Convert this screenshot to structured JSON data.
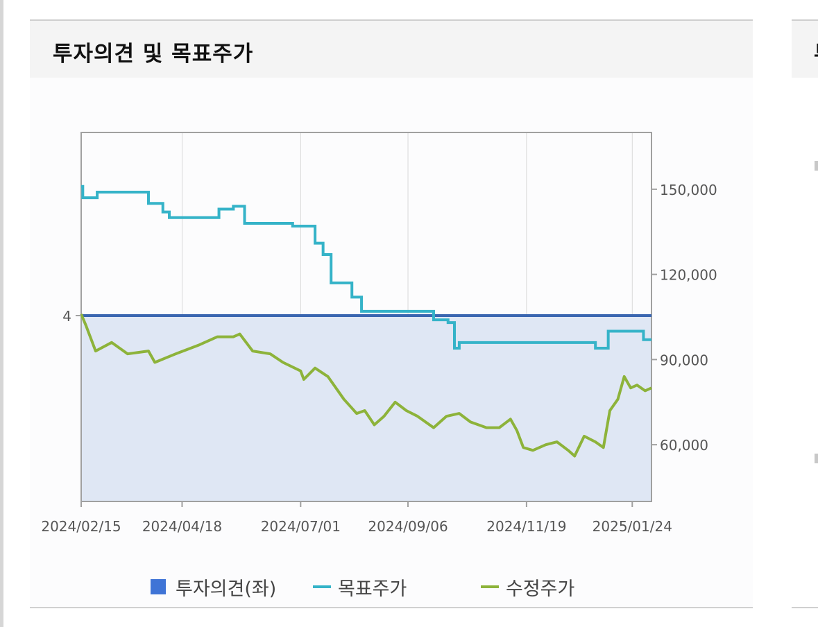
{
  "panel": {
    "title": "투자의견 및 목표주가"
  },
  "panel2": {
    "title_fragment": "투"
  },
  "chart_data": {
    "type": "line",
    "x_tick_labels": [
      "2024/02/15",
      "2024/04/18",
      "2024/07/01",
      "2024/09/06",
      "2024/11/19",
      "2025/01/24"
    ],
    "y_left_ticks": [
      "4"
    ],
    "y_right_ticks": [
      "150,000",
      "120,000",
      "90,000",
      "60,000"
    ],
    "y_right_range": [
      40000,
      170000
    ],
    "y_left_opinion_value": 4,
    "grid": true,
    "legend_position": "bottom",
    "series": [
      {
        "name": "투자의견(좌)",
        "axis": "left",
        "kind": "area",
        "color": "#3a66b0",
        "fill": "#dfe7f4",
        "legend_color": "#3f74d6",
        "value": 4
      },
      {
        "name": "목표주가",
        "axis": "right",
        "kind": "step",
        "color": "#35b3c8",
        "points": [
          [
            "2024/02/15",
            151000
          ],
          [
            "2024/02/16",
            147000
          ],
          [
            "2024/02/24",
            147000
          ],
          [
            "2024/02/25",
            149000
          ],
          [
            "2024/03/27",
            149000
          ],
          [
            "2024/03/28",
            145000
          ],
          [
            "2024/04/05",
            145000
          ],
          [
            "2024/04/06",
            142000
          ],
          [
            "2024/04/10",
            140000
          ],
          [
            "2024/05/10",
            140000
          ],
          [
            "2024/05/11",
            143000
          ],
          [
            "2024/05/20",
            144000
          ],
          [
            "2024/05/26",
            144000
          ],
          [
            "2024/05/27",
            138000
          ],
          [
            "2024/06/25",
            138000
          ],
          [
            "2024/06/26",
            137000
          ],
          [
            "2024/07/08",
            137000
          ],
          [
            "2024/07/10",
            131000
          ],
          [
            "2024/07/15",
            127000
          ],
          [
            "2024/07/20",
            117000
          ],
          [
            "2024/07/30",
            117000
          ],
          [
            "2024/08/02",
            112000
          ],
          [
            "2024/08/08",
            107000
          ],
          [
            "2024/09/17",
            107000
          ],
          [
            "2024/09/22",
            104000
          ],
          [
            "2024/10/01",
            103000
          ],
          [
            "2024/10/05",
            94000
          ],
          [
            "2024/10/08",
            96000
          ],
          [
            "2024/12/31",
            96000
          ],
          [
            "2025/01/01",
            94000
          ],
          [
            "2025/01/08",
            94000
          ],
          [
            "2025/01/09",
            100000
          ],
          [
            "2025/01/24",
            100000
          ],
          [
            "2025/01/31",
            97000
          ],
          [
            "2025/02/05",
            97000
          ]
        ]
      },
      {
        "name": "수정주가",
        "axis": "right",
        "kind": "line",
        "color": "#8db33a",
        "points": [
          [
            "2024/02/15",
            106000
          ],
          [
            "2024/02/18",
            102000
          ],
          [
            "2024/02/24",
            93000
          ],
          [
            "2024/03/05",
            96000
          ],
          [
            "2024/03/15",
            92000
          ],
          [
            "2024/03/28",
            93000
          ],
          [
            "2024/04/01",
            89000
          ],
          [
            "2024/04/14",
            92000
          ],
          [
            "2024/04/28",
            95000
          ],
          [
            "2024/05/10",
            98000
          ],
          [
            "2024/05/20",
            98000
          ],
          [
            "2024/05/24",
            99000
          ],
          [
            "2024/06/01",
            93000
          ],
          [
            "2024/06/12",
            92000
          ],
          [
            "2024/06/20",
            89000
          ],
          [
            "2024/07/01",
            86000
          ],
          [
            "2024/07/03",
            83000
          ],
          [
            "2024/07/10",
            87000
          ],
          [
            "2024/07/18",
            84000
          ],
          [
            "2024/07/28",
            76000
          ],
          [
            "2024/08/05",
            71000
          ],
          [
            "2024/08/10",
            72000
          ],
          [
            "2024/08/16",
            67000
          ],
          [
            "2024/08/22",
            70000
          ],
          [
            "2024/08/29",
            75000
          ],
          [
            "2024/09/05",
            72000
          ],
          [
            "2024/09/12",
            70000
          ],
          [
            "2024/09/22",
            66000
          ],
          [
            "2024/09/30",
            70000
          ],
          [
            "2024/10/08",
            71000
          ],
          [
            "2024/10/15",
            68000
          ],
          [
            "2024/10/25",
            66000
          ],
          [
            "2024/11/02",
            66000
          ],
          [
            "2024/11/09",
            69000
          ],
          [
            "2024/11/13",
            65000
          ],
          [
            "2024/11/17",
            59000
          ],
          [
            "2024/11/23",
            58000
          ],
          [
            "2024/12/01",
            60000
          ],
          [
            "2024/12/08",
            61000
          ],
          [
            "2024/12/15",
            58000
          ],
          [
            "2024/12/19",
            56000
          ],
          [
            "2024/12/25",
            63000
          ],
          [
            "2025/01/01",
            61000
          ],
          [
            "2025/01/06",
            59000
          ],
          [
            "2025/01/10",
            72000
          ],
          [
            "2025/01/15",
            76000
          ],
          [
            "2025/01/19",
            84000
          ],
          [
            "2025/01/23",
            80000
          ],
          [
            "2025/01/27",
            81000
          ],
          [
            "2025/02/01",
            79000
          ],
          [
            "2025/02/05",
            80000
          ]
        ]
      }
    ]
  }
}
